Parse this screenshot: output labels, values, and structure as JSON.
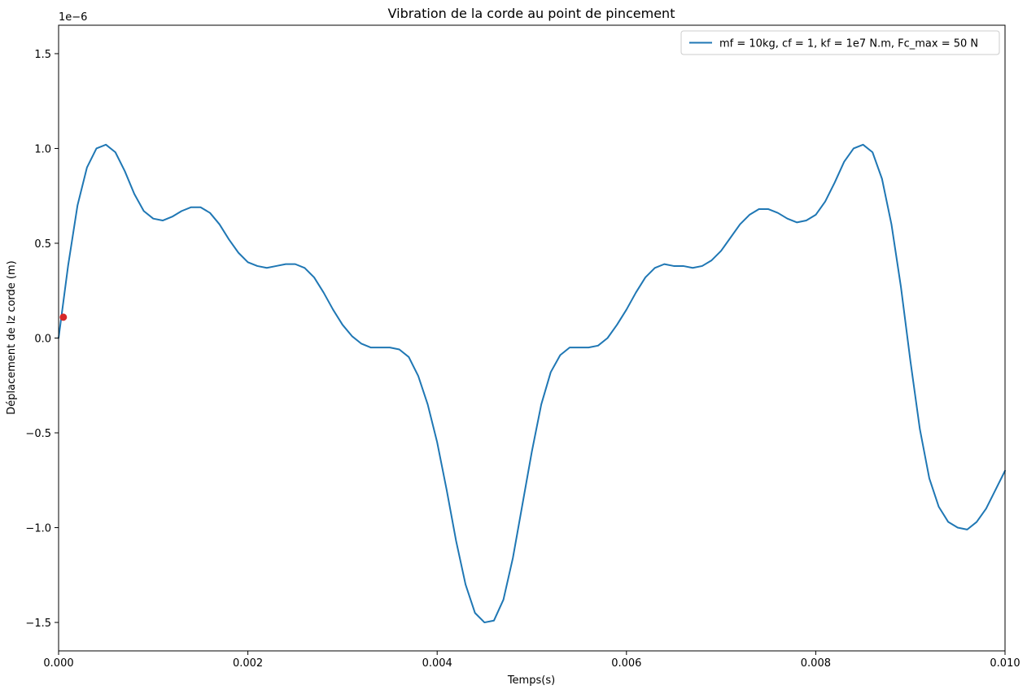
{
  "chart_data": {
    "type": "line",
    "title": "Vibration de la corde au point de pincement",
    "xlabel": "Temps(s)",
    "ylabel": "Déplacement de lz corde (m)",
    "y_offset_text": "1e−6",
    "xlim": [
      0,
      0.01
    ],
    "ylim": [
      -1.65,
      1.65
    ],
    "y_scale_exponent": -6,
    "x_ticks": [
      0,
      0.002,
      0.004,
      0.006,
      0.008,
      0.01
    ],
    "x_tick_labels": [
      "0.000",
      "0.002",
      "0.004",
      "0.006",
      "0.008",
      "0.010"
    ],
    "y_ticks": [
      -1.5,
      -1.0,
      -0.5,
      0.0,
      0.5,
      1.0,
      1.5
    ],
    "y_tick_labels": [
      "−1.5",
      "−1.0",
      "−0.5",
      "0.0",
      "0.5",
      "1.0",
      "1.5"
    ],
    "grid": false,
    "legend_position": "top-right",
    "series": [
      {
        "name": "mf = 10kg, cf = 1, kf = 1e7 N.m, Fc_max = 50 N",
        "color": "#1f77b4",
        "x": [
          0,
          0.0001,
          0.0002,
          0.0003,
          0.0004,
          0.0005,
          0.0006,
          0.0007,
          0.0008,
          0.0009,
          0.001,
          0.0011,
          0.0012,
          0.0013,
          0.0014,
          0.0015,
          0.0016,
          0.0017,
          0.0018,
          0.0019,
          0.002,
          0.0021,
          0.0022,
          0.0023,
          0.0024,
          0.0025,
          0.0026,
          0.0027,
          0.0028,
          0.0029,
          0.003,
          0.0031,
          0.0032,
          0.0033,
          0.0034,
          0.0035,
          0.0036,
          0.0037,
          0.0038,
          0.0039,
          0.004,
          0.0041,
          0.0042,
          0.0043,
          0.0044,
          0.0045,
          0.0046,
          0.0047,
          0.0048,
          0.0049,
          0.005,
          0.0051,
          0.0052,
          0.0053,
          0.0054,
          0.0055,
          0.0056,
          0.0057,
          0.0058,
          0.0059,
          0.006,
          0.0061,
          0.0062,
          0.0063,
          0.0064,
          0.0065,
          0.0066,
          0.0067,
          0.0068,
          0.0069,
          0.007,
          0.0071,
          0.0072,
          0.0073,
          0.0074,
          0.0075,
          0.0076,
          0.0077,
          0.0078,
          0.0079,
          0.008,
          0.0081,
          0.0082,
          0.0083,
          0.0084,
          0.0085,
          0.0086,
          0.0087,
          0.0088,
          0.0089,
          0.009,
          0.0091,
          0.0092,
          0.0093,
          0.0094,
          0.0095,
          0.0096,
          0.0097,
          0.0098,
          0.0099,
          0.01
        ],
        "y": [
          0.0,
          0.38,
          0.7,
          0.9,
          1.0,
          1.02,
          0.98,
          0.88,
          0.76,
          0.67,
          0.63,
          0.62,
          0.64,
          0.67,
          0.69,
          0.69,
          0.66,
          0.6,
          0.52,
          0.45,
          0.4,
          0.38,
          0.37,
          0.38,
          0.39,
          0.39,
          0.37,
          0.32,
          0.24,
          0.15,
          0.07,
          0.01,
          -0.03,
          -0.05,
          -0.05,
          -0.05,
          -0.06,
          -0.1,
          -0.2,
          -0.35,
          -0.55,
          -0.8,
          -1.07,
          -1.3,
          -1.45,
          -1.5,
          -1.49,
          -1.38,
          -1.16,
          -0.88,
          -0.6,
          -0.35,
          -0.18,
          -0.09,
          -0.05,
          -0.05,
          -0.05,
          -0.04,
          0.0,
          0.07,
          0.15,
          0.24,
          0.32,
          0.37,
          0.39,
          0.38,
          0.38,
          0.37,
          0.38,
          0.41,
          0.46,
          0.53,
          0.6,
          0.65,
          0.68,
          0.68,
          0.66,
          0.63,
          0.61,
          0.62,
          0.65,
          0.72,
          0.82,
          0.93,
          1.0,
          1.02,
          0.98,
          0.84,
          0.6,
          0.27,
          -0.12,
          -0.48,
          -0.74,
          -0.89,
          -0.97,
          -1.0,
          -1.01,
          -0.97,
          -0.9,
          -0.8,
          -0.7
        ]
      }
    ],
    "marker_points": [
      {
        "x": 5e-05,
        "y": 0.11,
        "color": "#d62728"
      }
    ]
  }
}
